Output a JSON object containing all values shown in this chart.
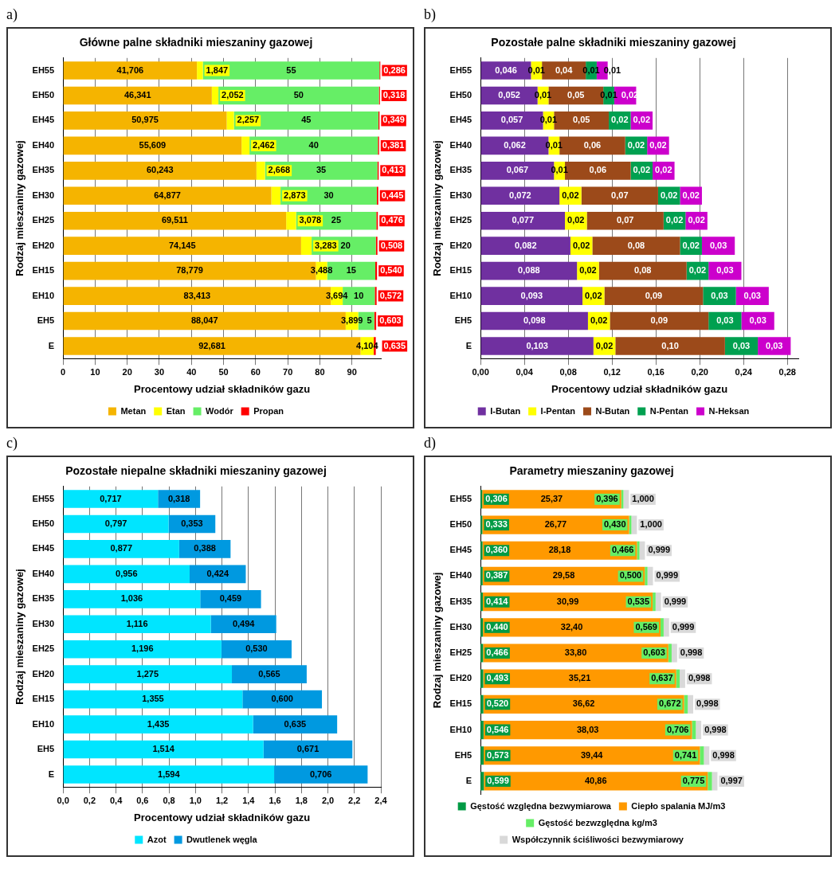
{
  "chart_data": [
    {
      "type": "bar",
      "orientation": "horizontal",
      "stacked": true,
      "title": "Główne palne składniki mieszaniny gazowej",
      "xlabel": "Procentowy udział składników gazu",
      "ylabel": "Rodzaj mieszaniny gazowej",
      "annotations": [
        "a)"
      ],
      "categories": [
        "EH55",
        "EH50",
        "EH45",
        "EH40",
        "EH35",
        "EH30",
        "EH25",
        "EH20",
        "EH15",
        "EH10",
        "EH5",
        "E"
      ],
      "xlim": [
        0,
        99
      ],
      "xticks": [
        0,
        10,
        20,
        30,
        40,
        50,
        60,
        70,
        80,
        90
      ],
      "grid": "x",
      "legend": "bottom",
      "series": [
        {
          "name": "Metan",
          "color": "#f5b400",
          "values": [
            41.706,
            46.341,
            50.975,
            55.609,
            60.243,
            64.877,
            69.511,
            74.145,
            78.779,
            83.413,
            88.047,
            92.681
          ],
          "value_labels": [
            "41,706",
            "46,341",
            "50,975",
            "55,609",
            "60,243",
            "64,877",
            "69,511",
            "74,145",
            "78,779",
            "83,413",
            "88,047",
            "92,681"
          ]
        },
        {
          "name": "Etan",
          "color": "#ffff00",
          "values": [
            1.847,
            2.052,
            2.257,
            2.462,
            2.668,
            2.873,
            3.078,
            3.283,
            3.488,
            3.694,
            3.899,
            4.104
          ],
          "value_labels": [
            "1,847",
            "2,052",
            "2,257",
            "2,462",
            "2,668",
            "2,873",
            "3,078",
            "3,283",
            "3,488",
            "3,694",
            "3,899",
            "4,104"
          ]
        },
        {
          "name": "Wodór",
          "color": "#66ee66",
          "values": [
            55,
            50,
            45,
            40,
            35,
            30,
            25,
            20,
            15,
            10,
            5,
            0
          ],
          "value_labels": [
            "55",
            "50",
            "45",
            "40",
            "35",
            "30",
            "25",
            "20",
            "15",
            "10",
            "5",
            null
          ]
        },
        {
          "name": "Propan",
          "color": "#ff0000",
          "values": [
            0.286,
            0.318,
            0.349,
            0.381,
            0.413,
            0.445,
            0.476,
            0.508,
            0.54,
            0.572,
            0.603,
            0.635
          ],
          "value_labels": [
            "0,286",
            "0,318",
            "0,349",
            "0,381",
            "0,413",
            "0,445",
            "0,476",
            "0,508",
            "0,540",
            "0,572",
            "0,603",
            "0,635"
          ]
        }
      ]
    },
    {
      "type": "bar",
      "orientation": "horizontal",
      "stacked": true,
      "title": "Pozostałe palne składniki mieszaniny gazowej",
      "xlabel": "Procentowy udział składników gazu",
      "ylabel": "Rodzaj mieszaniny gazowej",
      "annotations": [
        "b)"
      ],
      "categories": [
        "EH55",
        "EH50",
        "EH45",
        "EH40",
        "EH35",
        "EH30",
        "EH25",
        "EH20",
        "EH15",
        "EH10",
        "EH5",
        "E"
      ],
      "xlim": [
        0,
        0.29
      ],
      "xticks": [
        {
          "value": 0,
          "label": "0,00"
        },
        {
          "value": 0.04,
          "label": "0,04"
        },
        {
          "value": 0.08,
          "label": "0,08"
        },
        {
          "value": 0.12,
          "label": "0,12"
        },
        {
          "value": 0.16,
          "label": "0,16"
        },
        {
          "value": 0.2,
          "label": "0,20"
        },
        {
          "value": 0.24,
          "label": "0,24"
        },
        {
          "value": 0.28,
          "label": "0,28"
        }
      ],
      "grid": "x",
      "legend": "bottom",
      "series": [
        {
          "name": "I-Butan",
          "color": "#7030a0",
          "values": [
            0.046,
            0.052,
            0.057,
            0.062,
            0.067,
            0.072,
            0.077,
            0.082,
            0.088,
            0.093,
            0.098,
            0.103
          ],
          "value_labels": [
            "0,046",
            "0,052",
            "0,057",
            "0,062",
            "0,067",
            "0,072",
            "0,077",
            "0,082",
            "0,088",
            "0,093",
            "0,098",
            "0,103"
          ]
        },
        {
          "name": "I-Pentan",
          "color": "#ffff00",
          "values": [
            0.01,
            0.01,
            0.01,
            0.01,
            0.01,
            0.02,
            0.02,
            0.02,
            0.02,
            0.02,
            0.02,
            0.02
          ],
          "value_labels": [
            "0,01",
            "0,01",
            "0,01",
            "0,01",
            "0,01",
            "0,02",
            "0,02",
            "0,02",
            "0,02",
            "0,02",
            "0,02",
            "0,02"
          ]
        },
        {
          "name": "N-Butan",
          "color": "#9c4a1a",
          "values": [
            0.04,
            0.05,
            0.05,
            0.06,
            0.06,
            0.07,
            0.07,
            0.08,
            0.08,
            0.09,
            0.09,
            0.1
          ],
          "value_labels": [
            "0,04",
            "0,05",
            "0,05",
            "0,06",
            "0,06",
            "0,07",
            "0,07",
            "0,08",
            "0,08",
            "0,09",
            "0,09",
            "0,10"
          ]
        },
        {
          "name": "N-Pentan",
          "color": "#00a050",
          "values": [
            0.01,
            0.01,
            0.02,
            0.02,
            0.02,
            0.02,
            0.02,
            0.02,
            0.02,
            0.03,
            0.03,
            0.03
          ],
          "value_labels": [
            "0,01",
            "0,01",
            "0,02",
            "0,02",
            "0,02",
            "0,02",
            "0,02",
            "0,02",
            "0,02",
            "0,03",
            "0,03",
            "0,03"
          ]
        },
        {
          "name": "N-Heksan",
          "color": "#cc00cc",
          "values": [
            0.01,
            0.02,
            0.02,
            0.02,
            0.02,
            0.02,
            0.02,
            0.03,
            0.03,
            0.03,
            0.03,
            0.03
          ],
          "value_labels": [
            "0,01",
            "0,02",
            "0,02",
            "0,02",
            "0,02",
            "0,02",
            "0,02",
            "0,03",
            "0,03",
            "0,03",
            "0,03",
            "0,03"
          ]
        }
      ]
    },
    {
      "type": "bar",
      "orientation": "horizontal",
      "stacked": true,
      "title": "Pozostałe niepalne składniki mieszaniny gazowej",
      "xlabel": "Procentowy udział składników gazu",
      "ylabel": "Rodzaj mieszaniny gazowej",
      "annotations": [
        "c)"
      ],
      "categories": [
        "EH55",
        "EH50",
        "EH45",
        "EH40",
        "EH35",
        "EH30",
        "EH25",
        "EH20",
        "EH15",
        "EH10",
        "EH5",
        "E"
      ],
      "xlim": [
        0,
        2.4
      ],
      "xticks": [
        {
          "value": 0,
          "label": "0,0"
        },
        {
          "value": 0.2,
          "label": "0,2"
        },
        {
          "value": 0.4,
          "label": "0,4"
        },
        {
          "value": 0.6,
          "label": "0,6"
        },
        {
          "value": 0.8,
          "label": "0,8"
        },
        {
          "value": 1.0,
          "label": "1,0"
        },
        {
          "value": 1.2,
          "label": "1,2"
        },
        {
          "value": 1.4,
          "label": "1,4"
        },
        {
          "value": 1.6,
          "label": "1,6"
        },
        {
          "value": 1.8,
          "label": "1,8"
        },
        {
          "value": 2.0,
          "label": "2,0"
        },
        {
          "value": 2.2,
          "label": "2,2"
        },
        {
          "value": 2.4,
          "label": "2,4"
        }
      ],
      "grid": "x",
      "legend": "bottom",
      "series": [
        {
          "name": "Azot",
          "color": "#00e5ff",
          "values": [
            0.717,
            0.797,
            0.877,
            0.956,
            1.036,
            1.116,
            1.196,
            1.275,
            1.355,
            1.435,
            1.514,
            1.594
          ],
          "value_labels": [
            "0,717",
            "0,797",
            "0,877",
            "0,956",
            "1,036",
            "1,116",
            "1,196",
            "1,275",
            "1,355",
            "1,435",
            "1,514",
            "1,594"
          ]
        },
        {
          "name": "Dwutlenek węgla",
          "color": "#0099e0",
          "values": [
            0.318,
            0.353,
            0.388,
            0.424,
            0.459,
            0.494,
            0.53,
            0.565,
            0.6,
            0.635,
            0.671,
            0.706
          ],
          "value_labels": [
            "0,318",
            "0,353",
            "0,388",
            "0,424",
            "0,459",
            "0,494",
            "0,530",
            "0,565",
            "0,600",
            "0,635",
            "0,671",
            "0,706"
          ]
        }
      ]
    },
    {
      "type": "bar",
      "orientation": "horizontal",
      "stacked": true,
      "title": "Parametry mieszaniny gazowej",
      "ylabel": "Rodzaj mieszaniny gazowej",
      "annotations": [
        "d)"
      ],
      "categories": [
        "EH55",
        "EH50",
        "EH45",
        "EH40",
        "EH35",
        "EH30",
        "EH25",
        "EH20",
        "EH15",
        "EH10",
        "EH5",
        "E"
      ],
      "tick_labels": "y",
      "legend": "bottom",
      "series": [
        {
          "name": "Gęstość względna bezwymiarowa",
          "color": "#009a44",
          "values": [
            0.306,
            0.333,
            0.36,
            0.387,
            0.414,
            0.44,
            0.466,
            0.493,
            0.52,
            0.546,
            0.573,
            0.599
          ],
          "value_labels": [
            "0,306",
            "0,333",
            "0,360",
            "0,387",
            "0,414",
            "0,440",
            "0,466",
            "0,493",
            "0,520",
            "0,546",
            "0,573",
            "0,599"
          ]
        },
        {
          "name": "Ciepło spalania MJ/m3",
          "color": "#ff9900",
          "values": [
            25.37,
            26.77,
            28.18,
            29.58,
            30.99,
            32.4,
            33.8,
            35.21,
            36.62,
            38.03,
            39.44,
            40.86
          ],
          "value_labels": [
            "25,37",
            "26,77",
            "28,18",
            "29,58",
            "30,99",
            "32,40",
            "33,80",
            "35,21",
            "36,62",
            "38,03",
            "39,44",
            "40,86"
          ]
        },
        {
          "name": "Gęstość bezwzględna kg/m3",
          "color": "#66ee66",
          "values": [
            0.396,
            0.43,
            0.466,
            0.5,
            0.535,
            0.569,
            0.603,
            0.637,
            0.672,
            0.706,
            0.741,
            0.775
          ],
          "value_labels": [
            "0,396",
            "0,430",
            "0,466",
            "0,500",
            "0,535",
            "0,569",
            "0,603",
            "0,637",
            "0,672",
            "0,706",
            "0,741",
            "0,775"
          ]
        },
        {
          "name": "Współczynnik ściśliwości bezwymiarowy",
          "color": "#d9d9d9",
          "values": [
            1.0,
            1.0,
            0.999,
            0.999,
            0.999,
            0.999,
            0.998,
            0.998,
            0.998,
            0.998,
            0.998,
            0.997
          ],
          "value_labels": [
            "1,000",
            "1,000",
            "0,999",
            "0,999",
            "0,999",
            "0,999",
            "0,998",
            "0,998",
            "0,998",
            "0,998",
            "0,998",
            "0,997"
          ]
        }
      ]
    }
  ]
}
